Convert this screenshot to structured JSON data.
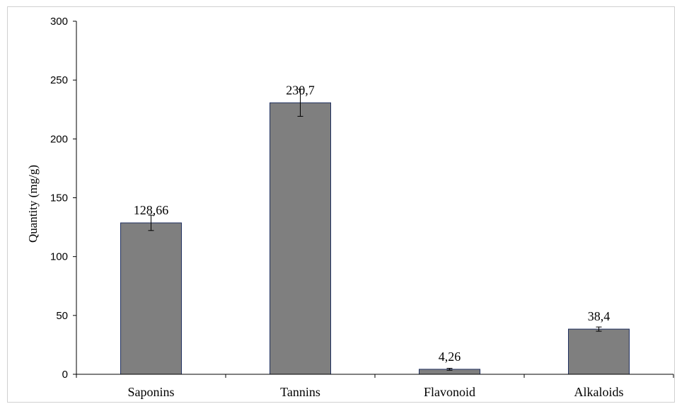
{
  "chart_data": {
    "type": "bar",
    "categories": [
      "Saponins",
      "Tannins",
      "Flavonoid",
      "Alkaloids"
    ],
    "values": [
      128.66,
      230.7,
      4.26,
      38.4
    ],
    "value_labels": [
      "128,66",
      "230,7",
      "4,26",
      "38,4"
    ],
    "error_bars": [
      6.5,
      11.5,
      0.8,
      1.8
    ],
    "title": "",
    "xlabel": "",
    "ylabel": "Quantity  (mg/g)",
    "ylim": [
      0,
      300
    ],
    "yticks": [
      0,
      50,
      100,
      150,
      200,
      250,
      300
    ],
    "grid": false,
    "legend": "none",
    "colors": {
      "bar_fill": "#7f7f7f",
      "bar_stroke": "#1f2f5f",
      "axis": "#000000"
    }
  }
}
